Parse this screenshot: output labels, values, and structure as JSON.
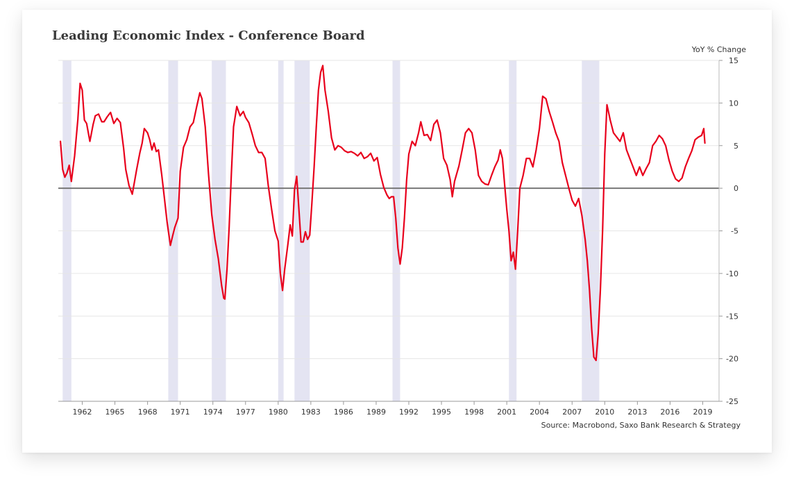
{
  "chart_data": {
    "type": "line",
    "title": "Leading Economic Index - Conference Board",
    "ylabel": "YoY % Change",
    "source": "Source: Macrobond, Saxo Bank Research & Strategy",
    "xlim": [
      1959.8,
      2020.5
    ],
    "ylim": [
      -25,
      15
    ],
    "y_ticks": [
      15,
      10,
      5,
      0,
      -5,
      -10,
      -15,
      -20,
      -25
    ],
    "x_ticks": [
      1962,
      1965,
      1968,
      1971,
      1974,
      1977,
      1980,
      1983,
      1986,
      1989,
      1992,
      1995,
      1998,
      2001,
      2004,
      2007,
      2010,
      2013,
      2016,
      2019
    ],
    "y_axis_position": "right",
    "grid": "horizontal",
    "zero_line": true,
    "recessions": [
      [
        1960.2,
        1961.0
      ],
      [
        1969.9,
        1970.8
      ],
      [
        1973.9,
        1975.2
      ],
      [
        1980.0,
        1980.5
      ],
      [
        1981.5,
        1982.9
      ],
      [
        1990.5,
        1991.2
      ],
      [
        2001.2,
        2001.9
      ],
      [
        2007.9,
        2009.5
      ]
    ],
    "series": [
      {
        "color": "#e8001c",
        "x": [
          1960.0,
          1960.2,
          1960.4,
          1960.6,
          1960.8,
          1961.0,
          1961.3,
          1961.6,
          1961.8,
          1962.0,
          1962.2,
          1962.4,
          1962.7,
          1963.0,
          1963.2,
          1963.5,
          1963.8,
          1964.0,
          1964.3,
          1964.6,
          1964.9,
          1965.2,
          1965.5,
          1965.8,
          1966.0,
          1966.3,
          1966.6,
          1967.0,
          1967.3,
          1967.5,
          1967.7,
          1968.0,
          1968.2,
          1968.4,
          1968.6,
          1968.8,
          1969.0,
          1969.3,
          1969.5,
          1969.8,
          1970.1,
          1970.3,
          1970.5,
          1970.8,
          1971.0,
          1971.3,
          1971.6,
          1971.9,
          1972.2,
          1972.5,
          1972.8,
          1973.0,
          1973.3,
          1973.6,
          1973.9,
          1974.2,
          1974.5,
          1974.8,
          1975.0,
          1975.1,
          1975.3,
          1975.5,
          1975.7,
          1975.9,
          1976.2,
          1976.5,
          1976.8,
          1977.0,
          1977.3,
          1977.6,
          1977.9,
          1978.2,
          1978.5,
          1978.8,
          1979.1,
          1979.4,
          1979.7,
          1980.0,
          1980.2,
          1980.4,
          1980.6,
          1980.9,
          1981.1,
          1981.3,
          1981.5,
          1981.7,
          1981.9,
          1982.1,
          1982.3,
          1982.5,
          1982.7,
          1982.9,
          1983.1,
          1983.3,
          1983.5,
          1983.7,
          1983.9,
          1984.1,
          1984.3,
          1984.6,
          1984.9,
          1985.2,
          1985.5,
          1985.8,
          1986.1,
          1986.4,
          1986.7,
          1987.0,
          1987.3,
          1987.6,
          1987.9,
          1988.2,
          1988.5,
          1988.8,
          1989.1,
          1989.4,
          1989.7,
          1990.0,
          1990.2,
          1990.4,
          1990.6,
          1990.8,
          1991.0,
          1991.2,
          1991.4,
          1991.6,
          1991.8,
          1992.0,
          1992.3,
          1992.6,
          1992.9,
          1993.1,
          1993.4,
          1993.7,
          1994.0,
          1994.3,
          1994.6,
          1994.9,
          1995.2,
          1995.5,
          1995.8,
          1996.0,
          1996.2,
          1996.4,
          1996.6,
          1996.9,
          1997.2,
          1997.5,
          1997.8,
          1998.1,
          1998.4,
          1998.7,
          1999.0,
          1999.3,
          1999.6,
          1999.9,
          2000.2,
          2000.4,
          2000.6,
          2000.8,
          2001.0,
          2001.2,
          2001.4,
          2001.6,
          2001.8,
          2002.0,
          2002.2,
          2002.5,
          2002.8,
          2003.1,
          2003.4,
          2003.7,
          2004.0,
          2004.3,
          2004.6,
          2004.9,
          2005.2,
          2005.5,
          2005.8,
          2006.1,
          2006.4,
          2006.7,
          2007.0,
          2007.3,
          2007.6,
          2007.9,
          2008.2,
          2008.4,
          2008.6,
          2008.8,
          2009.0,
          2009.2,
          2009.4,
          2009.6,
          2009.8,
          2010.0,
          2010.2,
          2010.5,
          2010.8,
          2011.1,
          2011.4,
          2011.7,
          2012.0,
          2012.3,
          2012.6,
          2012.9,
          2013.2,
          2013.5,
          2013.8,
          2014.1,
          2014.4,
          2014.7,
          2015.0,
          2015.3,
          2015.6,
          2015.9,
          2016.2,
          2016.5,
          2016.8,
          2017.1,
          2017.4,
          2017.7,
          2018.0,
          2018.3,
          2018.6,
          2018.9,
          2019.1,
          2019.2
        ],
        "y": [
          5.5,
          2.2,
          1.3,
          1.8,
          2.7,
          0.8,
          3.8,
          8.1,
          12.3,
          11.5,
          8.0,
          7.6,
          5.5,
          7.5,
          8.5,
          8.7,
          7.8,
          7.8,
          8.4,
          8.9,
          7.6,
          8.2,
          7.7,
          4.7,
          2.2,
          0.3,
          -0.7,
          2.2,
          4.2,
          5.3,
          7.0,
          6.5,
          5.7,
          4.5,
          5.3,
          4.3,
          4.5,
          1.6,
          -0.6,
          -4.0,
          -6.7,
          -5.6,
          -4.6,
          -3.5,
          2.0,
          4.8,
          5.7,
          7.2,
          7.7,
          9.5,
          11.2,
          10.5,
          7.2,
          1.7,
          -3.1,
          -6.0,
          -8.3,
          -11.4,
          -12.9,
          -13.0,
          -9.5,
          -4.5,
          1.8,
          7.2,
          9.6,
          8.5,
          9.0,
          8.3,
          7.7,
          6.4,
          5.0,
          4.2,
          4.2,
          3.5,
          0.2,
          -2.5,
          -5.0,
          -6.2,
          -10.0,
          -12.0,
          -9.5,
          -6.5,
          -4.3,
          -5.6,
          -0.2,
          1.4,
          -2.4,
          -6.3,
          -6.3,
          -5.1,
          -6.0,
          -5.5,
          -1.7,
          2.5,
          7.2,
          11.5,
          13.6,
          14.4,
          11.5,
          9.0,
          5.9,
          4.5,
          5.0,
          4.8,
          4.4,
          4.2,
          4.3,
          4.1,
          3.8,
          4.2,
          3.5,
          3.7,
          4.1,
          3.2,
          3.6,
          1.6,
          0.1,
          -0.8,
          -1.2,
          -1.0,
          -1.0,
          -3.5,
          -7.0,
          -8.9,
          -7.0,
          -3.5,
          1.0,
          4.0,
          5.5,
          5.0,
          6.5,
          7.8,
          6.2,
          6.3,
          5.6,
          7.5,
          8.0,
          6.5,
          3.5,
          2.7,
          1.0,
          -1.0,
          0.8,
          1.7,
          2.6,
          4.5,
          6.5,
          7.0,
          6.5,
          4.5,
          1.5,
          0.8,
          0.5,
          0.4,
          1.5,
          2.5,
          3.3,
          4.5,
          3.5,
          0.5,
          -2.5,
          -5.0,
          -8.5,
          -7.5,
          -9.5,
          -5.0,
          0.0,
          1.5,
          3.5,
          3.5,
          2.5,
          4.5,
          7.0,
          10.8,
          10.5,
          9.0,
          7.8,
          6.5,
          5.5,
          3.0,
          1.5,
          0.0,
          -1.4,
          -2.1,
          -1.2,
          -3.2,
          -6.0,
          -8.5,
          -12.0,
          -16.5,
          -19.8,
          -20.2,
          -17.0,
          -12.0,
          -5.0,
          4.0,
          9.8,
          8.0,
          6.5,
          6.0,
          5.5,
          6.5,
          4.5,
          3.5,
          2.5,
          1.5,
          2.5,
          1.5,
          2.3,
          3.0,
          5.0,
          5.5,
          6.2,
          5.8,
          5.0,
          3.3,
          2.0,
          1.1,
          0.8,
          1.2,
          2.5,
          3.5,
          4.4,
          5.7,
          6.0,
          6.2,
          7.0,
          5.3
        ]
      }
    ]
  }
}
